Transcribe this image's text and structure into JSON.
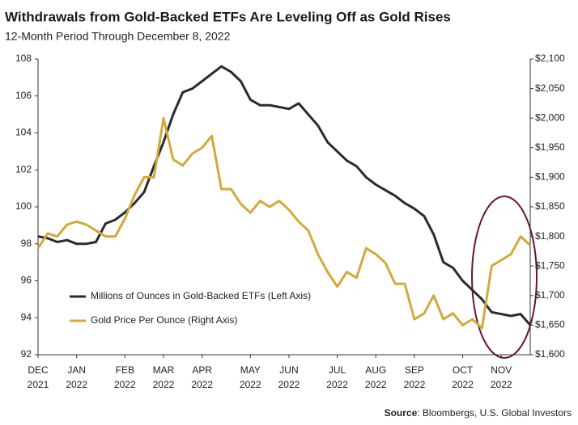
{
  "chart_data": {
    "type": "line",
    "title": "Withdrawals from Gold-Backed ETFs Are Leveling Off as Gold Rises",
    "subtitle": "12-Month Period Through December 8, 2022",
    "source_label": "Source",
    "source": ": Bloombergs, U.S. Global Investors",
    "categories": [
      [
        "DEC",
        "2021"
      ],
      null,
      null,
      null,
      [
        "JAN",
        "2022"
      ],
      null,
      null,
      null,
      null,
      [
        "FEB",
        "2022"
      ],
      null,
      null,
      null,
      [
        "MAR",
        "2022"
      ],
      null,
      null,
      null,
      [
        "APR",
        "2022"
      ],
      null,
      null,
      null,
      null,
      [
        "MAY",
        "2022"
      ],
      null,
      null,
      null,
      [
        "JUN",
        "2022"
      ],
      null,
      null,
      null,
      null,
      [
        "JUL",
        "2022"
      ],
      null,
      null,
      null,
      [
        "AUG",
        "2022"
      ],
      null,
      null,
      null,
      [
        "SEP",
        "2022"
      ],
      null,
      null,
      null,
      null,
      [
        "OCT",
        "2022"
      ],
      null,
      null,
      null,
      [
        "NOV",
        "2022"
      ],
      null,
      null,
      null
    ],
    "series": [
      {
        "name": "Millions of Ounces in Gold-Backed ETFs (Left Axis)",
        "color": "#2b2b2b",
        "axis": "y",
        "values": [
          98.4,
          98.3,
          98.1,
          98.2,
          98.0,
          98.0,
          98.1,
          99.1,
          99.3,
          99.7,
          100.2,
          100.8,
          102.2,
          103.5,
          105.0,
          106.2,
          106.4,
          106.8,
          107.2,
          107.6,
          107.3,
          106.8,
          105.8,
          105.5,
          105.5,
          105.4,
          105.3,
          105.6,
          105.0,
          104.4,
          103.5,
          103.0,
          102.5,
          102.2,
          101.6,
          101.2,
          100.9,
          100.6,
          100.2,
          99.9,
          99.5,
          98.5,
          97.0,
          96.7,
          96.0,
          95.5,
          95.0,
          94.3,
          94.2,
          94.1,
          94.2,
          93.6
        ]
      },
      {
        "name": "Gold Price Per Ounce (Right Axis)",
        "color": "#d4a83c",
        "axis": "y2",
        "values": [
          1780,
          1805,
          1800,
          1820,
          1825,
          1820,
          1810,
          1800,
          1800,
          1830,
          1870,
          1900,
          1900,
          2000,
          1930,
          1920,
          1940,
          1950,
          1970,
          1880,
          1880,
          1855,
          1840,
          1860,
          1850,
          1860,
          1845,
          1825,
          1810,
          1770,
          1740,
          1715,
          1740,
          1730,
          1780,
          1770,
          1755,
          1720,
          1720,
          1660,
          1670,
          1700,
          1660,
          1670,
          1650,
          1660,
          1645,
          1750,
          1760,
          1770,
          1800,
          1785
        ]
      }
    ],
    "ylim": [
      92,
      108
    ],
    "yticks": [
      92,
      94,
      96,
      98,
      100,
      102,
      104,
      106,
      108
    ],
    "y2lim": [
      1600,
      2100
    ],
    "y2ticks": [
      {
        "value": 1600,
        "label": "$1,600"
      },
      {
        "value": 1650,
        "label": "$1,650"
      },
      {
        "value": 1700,
        "label": "$1,700"
      },
      {
        "value": 1750,
        "label": "$1,750"
      },
      {
        "value": 1800,
        "label": "$1,800"
      },
      {
        "value": 1850,
        "label": "$1,850"
      },
      {
        "value": 1900,
        "label": "$1,900"
      },
      {
        "value": 1950,
        "label": "$1,950"
      },
      {
        "value": 2000,
        "label": "$2,000"
      },
      {
        "value": 2050,
        "label": "$2,050"
      },
      {
        "value": 2100,
        "label": "$2,100"
      }
    ],
    "grid": false,
    "legend": "lower-left"
  }
}
